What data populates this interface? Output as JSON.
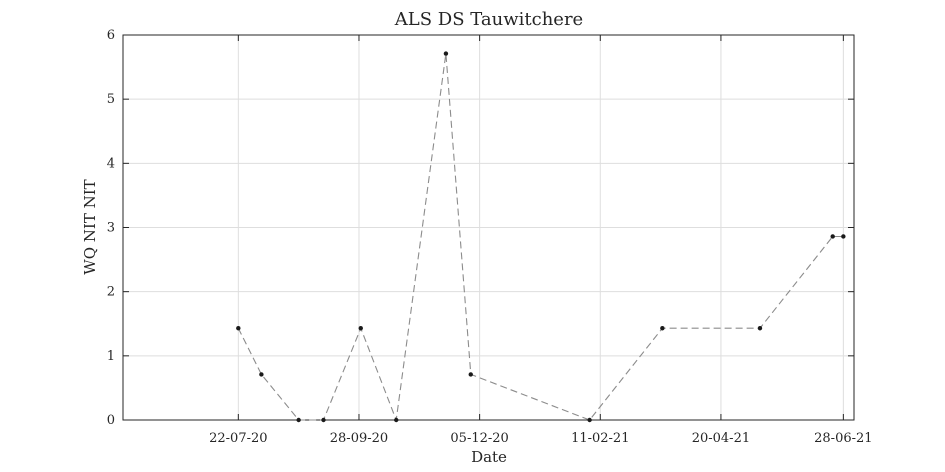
{
  "chart_data": {
    "type": "line",
    "title": "ALS DS Tauwitchere",
    "xlabel": "Date",
    "ylabel": "WQ NIT NIT",
    "x_tick_labels": [
      "22-07-20",
      "28-09-20",
      "05-12-20",
      "11-02-21",
      "20-04-21",
      "28-06-21"
    ],
    "x_ticks": [
      "2020-07-22",
      "2020-09-28",
      "2020-12-05",
      "2021-02-11",
      "2021-04-20",
      "2021-06-28"
    ],
    "xlim": [
      "2020-05-18",
      "2021-07-04"
    ],
    "ylim": [
      0,
      6
    ],
    "y_ticks": [
      0,
      1,
      2,
      3,
      4,
      5,
      6
    ],
    "grid": true,
    "series": [
      {
        "line_style": "dashed",
        "line_color": "#8c8c8c",
        "marker_color": "#1a1a1a",
        "points": [
          {
            "x": "2020-07-22",
            "y": 1.43
          },
          {
            "x": "2020-08-04",
            "y": 0.71
          },
          {
            "x": "2020-08-25",
            "y": 0.0
          },
          {
            "x": "2020-09-08",
            "y": 0.0
          },
          {
            "x": "2020-09-29",
            "y": 1.43
          },
          {
            "x": "2020-10-19",
            "y": 0.0
          },
          {
            "x": "2020-11-16",
            "y": 5.71
          },
          {
            "x": "2020-11-30",
            "y": 0.71
          },
          {
            "x": "2021-02-05",
            "y": 0.0
          },
          {
            "x": "2021-03-18",
            "y": 1.43
          },
          {
            "x": "2021-05-12",
            "y": 1.43
          },
          {
            "x": "2021-06-22",
            "y": 2.86
          },
          {
            "x": "2021-06-28",
            "y": 2.86
          }
        ]
      }
    ]
  }
}
